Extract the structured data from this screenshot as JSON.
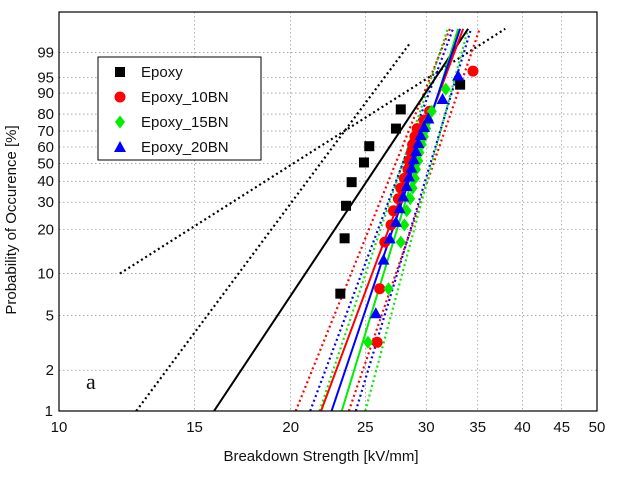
{
  "chart_data": {
    "type": "scatter",
    "title": "",
    "xlabel": "Breakdown Strength [kV/mm]",
    "ylabel": "Probability of Occurence [%]",
    "x_scale": "log",
    "y_scale": "weibull",
    "xlim": [
      10,
      50
    ],
    "ylim": [
      1,
      99.99
    ],
    "grid": true,
    "legend_position": "top-left",
    "panel_label": "a",
    "x_ticks": [
      10,
      15,
      20,
      25,
      30,
      35,
      40,
      45,
      50
    ],
    "x_tick_labels": [
      "10",
      "15",
      "20",
      "25",
      "30",
      "35",
      "40",
      "45",
      "50"
    ],
    "y_ticks": [
      1,
      2,
      5,
      10,
      20,
      30,
      40,
      50,
      60,
      70,
      80,
      90,
      95,
      99
    ],
    "y_tick_labels": [
      "1",
      "2",
      "5",
      "10",
      "20",
      "30",
      "40",
      "50",
      "60",
      "70",
      "80",
      "90",
      "95",
      "99"
    ],
    "series": [
      {
        "name": "Epoxy",
        "color": "#000000",
        "marker": "square",
        "points": [
          {
            "x": 23.2,
            "y": 7.2
          },
          {
            "x": 23.5,
            "y": 17.5
          },
          {
            "x": 23.6,
            "y": 28.5
          },
          {
            "x": 24.0,
            "y": 39.5
          },
          {
            "x": 24.9,
            "y": 50.5
          },
          {
            "x": 25.3,
            "y": 60.5
          },
          {
            "x": 27.4,
            "y": 71.5
          },
          {
            "x": 27.8,
            "y": 82.5
          },
          {
            "x": 33.2,
            "y": 93
          }
        ],
        "fit": {
          "x1": 15.9,
          "y1": 1,
          "x2": 34.0,
          "y2": 99.9
        },
        "ci": [
          {
            "x1": 12.6,
            "y1": 1,
            "x2": 28.5,
            "y2": 99.5
          },
          {
            "x1": 12.0,
            "y1": 10,
            "x2": 38.0,
            "y2": 99.9
          }
        ]
      },
      {
        "name": "Epoxy_10BN",
        "color": "#ff0000",
        "marker": "circle",
        "points": [
          {
            "x": 25.9,
            "y": 3.2
          },
          {
            "x": 26.1,
            "y": 7.8
          },
          {
            "x": 26.5,
            "y": 16.5
          },
          {
            "x": 27.0,
            "y": 21.5
          },
          {
            "x": 27.2,
            "y": 26.5
          },
          {
            "x": 27.6,
            "y": 31.5
          },
          {
            "x": 27.8,
            "y": 36.5
          },
          {
            "x": 28.1,
            "y": 41.5
          },
          {
            "x": 28.4,
            "y": 46.5
          },
          {
            "x": 28.5,
            "y": 51.5
          },
          {
            "x": 28.7,
            "y": 56.5
          },
          {
            "x": 28.8,
            "y": 61.5
          },
          {
            "x": 29.0,
            "y": 66.5
          },
          {
            "x": 29.2,
            "y": 71.5
          },
          {
            "x": 29.8,
            "y": 76.5
          },
          {
            "x": 30.3,
            "y": 81.5
          },
          {
            "x": 34.5,
            "y": 96.5
          }
        ],
        "fit": {
          "x1": 21.9,
          "y1": 1,
          "x2": 33.5,
          "y2": 99.9
        },
        "ci": [
          {
            "x1": 20.3,
            "y1": 1,
            "x2": 32.2,
            "y2": 99.9
          },
          {
            "x1": 23.8,
            "y1": 1,
            "x2": 35.2,
            "y2": 99.9
          }
        ]
      },
      {
        "name": "Epoxy_15BN",
        "color": "#00ee00",
        "marker": "diamond",
        "points": [
          {
            "x": 25.2,
            "y": 3.2
          },
          {
            "x": 26.8,
            "y": 7.8
          },
          {
            "x": 27.8,
            "y": 16.5
          },
          {
            "x": 28.1,
            "y": 21.5
          },
          {
            "x": 28.3,
            "y": 26.5
          },
          {
            "x": 28.6,
            "y": 31.5
          },
          {
            "x": 28.8,
            "y": 36.5
          },
          {
            "x": 29.0,
            "y": 41.5
          },
          {
            "x": 29.1,
            "y": 46.5
          },
          {
            "x": 29.3,
            "y": 51.5
          },
          {
            "x": 29.4,
            "y": 56.5
          },
          {
            "x": 29.6,
            "y": 61.5
          },
          {
            "x": 29.8,
            "y": 66.5
          },
          {
            "x": 30.0,
            "y": 71.5
          },
          {
            "x": 30.2,
            "y": 76.5
          },
          {
            "x": 30.5,
            "y": 81.5
          },
          {
            "x": 31.8,
            "y": 91.5
          }
        ],
        "fit": {
          "x1": 23.3,
          "y1": 1,
          "x2": 33.0,
          "y2": 99.9
        },
        "ci": [
          {
            "x1": 21.8,
            "y1": 1,
            "x2": 32.0,
            "y2": 99.9
          },
          {
            "x1": 25.0,
            "y1": 1,
            "x2": 34.0,
            "y2": 99.9
          }
        ]
      },
      {
        "name": "Epoxy_20BN",
        "color": "#0000ff",
        "marker": "triangle",
        "points": [
          {
            "x": 25.8,
            "y": 5.2
          },
          {
            "x": 26.4,
            "y": 12.5
          },
          {
            "x": 26.9,
            "y": 17.5
          },
          {
            "x": 27.4,
            "y": 22.5
          },
          {
            "x": 27.7,
            "y": 27.5
          },
          {
            "x": 28.0,
            "y": 32.5
          },
          {
            "x": 28.3,
            "y": 37.5
          },
          {
            "x": 28.5,
            "y": 42.5
          },
          {
            "x": 28.7,
            "y": 47.5
          },
          {
            "x": 28.9,
            "y": 52.5
          },
          {
            "x": 29.1,
            "y": 57.5
          },
          {
            "x": 29.3,
            "y": 62.5
          },
          {
            "x": 29.5,
            "y": 67.5
          },
          {
            "x": 29.8,
            "y": 72.5
          },
          {
            "x": 30.2,
            "y": 77.5
          },
          {
            "x": 31.5,
            "y": 87.5
          },
          {
            "x": 33.0,
            "y": 95.5
          }
        ],
        "fit": {
          "x1": 22.6,
          "y1": 1,
          "x2": 33.2,
          "y2": 99.9
        },
        "ci": [
          {
            "x1": 21.2,
            "y1": 1,
            "x2": 32.5,
            "y2": 99.9
          },
          {
            "x1": 24.3,
            "y1": 1,
            "x2": 34.3,
            "y2": 99.9
          }
        ]
      }
    ]
  }
}
